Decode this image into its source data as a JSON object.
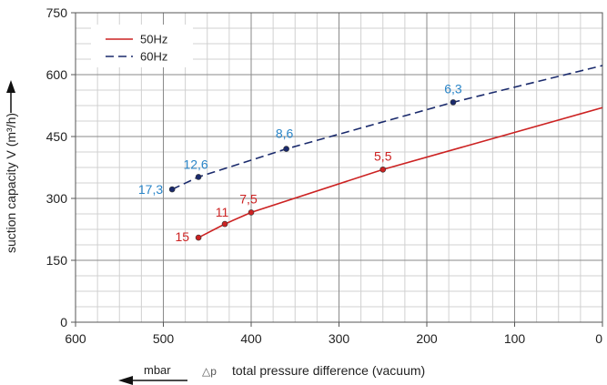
{
  "chart_data": {
    "type": "line",
    "title": "",
    "xlabel_unit": "mbar",
    "xlabel_symbol": "△p",
    "xlabel": "total pressure difference (vacuum)",
    "ylabel": "suction capacity V (m³/h)",
    "xlim": [
      600,
      0
    ],
    "ylim": [
      0,
      750
    ],
    "x_ticks": [
      600,
      500,
      400,
      300,
      200,
      100,
      0
    ],
    "y_ticks": [
      0,
      150,
      300,
      450,
      600,
      750
    ],
    "x_minor_step": 25,
    "y_minor_step": 37.5,
    "grid": true,
    "legend_position": "top-left",
    "series": [
      {
        "name": "50Hz",
        "color": "#cc2222",
        "dash": "solid",
        "x": [
          460,
          430,
          400,
          250,
          0
        ],
        "y": [
          205,
          238,
          266,
          370,
          520
        ],
        "markers": [
          {
            "x": 460,
            "y": 205,
            "label": "15"
          },
          {
            "x": 430,
            "y": 238,
            "label": "11"
          },
          {
            "x": 400,
            "y": 266,
            "label": "7,5"
          },
          {
            "x": 250,
            "y": 370,
            "label": "5,5"
          }
        ]
      },
      {
        "name": "60Hz",
        "color": "#1a2a6c",
        "label_color": "#2a85c8",
        "dash": "dashed",
        "x": [
          490,
          460,
          360,
          170,
          0
        ],
        "y": [
          322,
          352,
          420,
          533,
          622
        ],
        "markers": [
          {
            "x": 490,
            "y": 322,
            "label": "17,3"
          },
          {
            "x": 460,
            "y": 352,
            "label": "12,6"
          },
          {
            "x": 360,
            "y": 420,
            "label": "8,6"
          },
          {
            "x": 170,
            "y": 533,
            "label": "6,3"
          }
        ]
      }
    ]
  }
}
